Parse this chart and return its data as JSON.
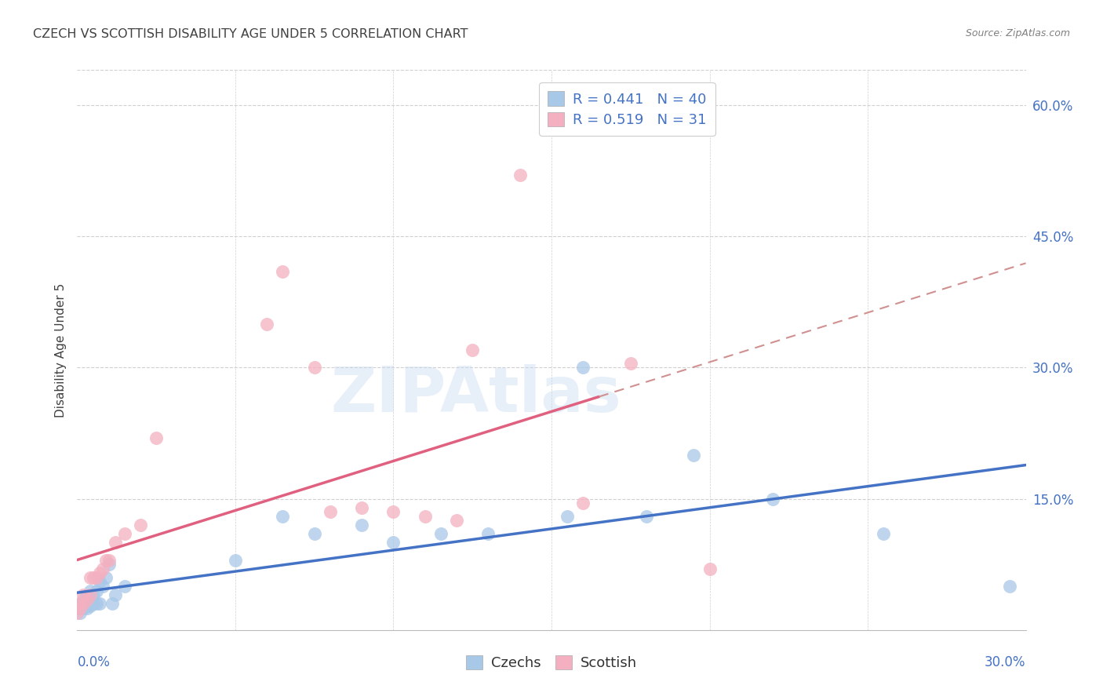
{
  "title": "CZECH VS SCOTTISH DISABILITY AGE UNDER 5 CORRELATION CHART",
  "source": "Source: ZipAtlas.com",
  "ylabel": "Disability Age Under 5",
  "right_yticks": [
    "60.0%",
    "45.0%",
    "30.0%",
    "15.0%"
  ],
  "right_ytick_vals": [
    0.6,
    0.45,
    0.3,
    0.15
  ],
  "xmin": 0.0,
  "xmax": 0.3,
  "ymin": 0.0,
  "ymax": 0.64,
  "czech_R": 0.441,
  "czech_N": 40,
  "scottish_R": 0.519,
  "scottish_N": 31,
  "czech_color": "#a8c8e8",
  "scottish_color": "#f4b0c0",
  "czech_line_color": "#4472c4",
  "scottish_line_color": "#e06080",
  "dashed_line_color": "#d09090",
  "grid_color": "#d0d0d0",
  "bg_color": "#ffffff",
  "title_color": "#404040",
  "right_axis_color": "#4472c4",
  "legend_R_N_color": "#4472c4",
  "czechs_x": [
    0.0,
    0.001,
    0.001,
    0.001,
    0.002,
    0.002,
    0.002,
    0.003,
    0.003,
    0.003,
    0.003,
    0.004,
    0.004,
    0.004,
    0.005,
    0.005,
    0.006,
    0.006,
    0.007,
    0.007,
    0.008,
    0.009,
    0.01,
    0.011,
    0.012,
    0.015,
    0.05,
    0.065,
    0.075,
    0.09,
    0.1,
    0.115,
    0.13,
    0.155,
    0.16,
    0.18,
    0.195,
    0.22,
    0.255,
    0.295
  ],
  "czechs_y": [
    0.025,
    0.02,
    0.025,
    0.03,
    0.025,
    0.03,
    0.035,
    0.025,
    0.028,
    0.032,
    0.038,
    0.028,
    0.035,
    0.045,
    0.03,
    0.04,
    0.03,
    0.045,
    0.03,
    0.055,
    0.05,
    0.06,
    0.075,
    0.03,
    0.04,
    0.05,
    0.08,
    0.13,
    0.11,
    0.12,
    0.1,
    0.11,
    0.11,
    0.13,
    0.3,
    0.13,
    0.2,
    0.15,
    0.11,
    0.05
  ],
  "scottish_x": [
    0.0,
    0.001,
    0.001,
    0.002,
    0.002,
    0.003,
    0.004,
    0.004,
    0.005,
    0.006,
    0.007,
    0.008,
    0.009,
    0.01,
    0.012,
    0.015,
    0.02,
    0.025,
    0.06,
    0.065,
    0.075,
    0.08,
    0.09,
    0.1,
    0.11,
    0.12,
    0.125,
    0.14,
    0.16,
    0.175,
    0.2
  ],
  "scottish_y": [
    0.02,
    0.025,
    0.03,
    0.03,
    0.04,
    0.035,
    0.04,
    0.06,
    0.06,
    0.06,
    0.065,
    0.07,
    0.08,
    0.08,
    0.1,
    0.11,
    0.12,
    0.22,
    0.35,
    0.41,
    0.3,
    0.135,
    0.14,
    0.135,
    0.13,
    0.125,
    0.32,
    0.52,
    0.145,
    0.305,
    0.07
  ],
  "watermark_text": "ZIPAtlas",
  "watermark_color": "#c5d8f0",
  "watermark_alpha": 0.4
}
